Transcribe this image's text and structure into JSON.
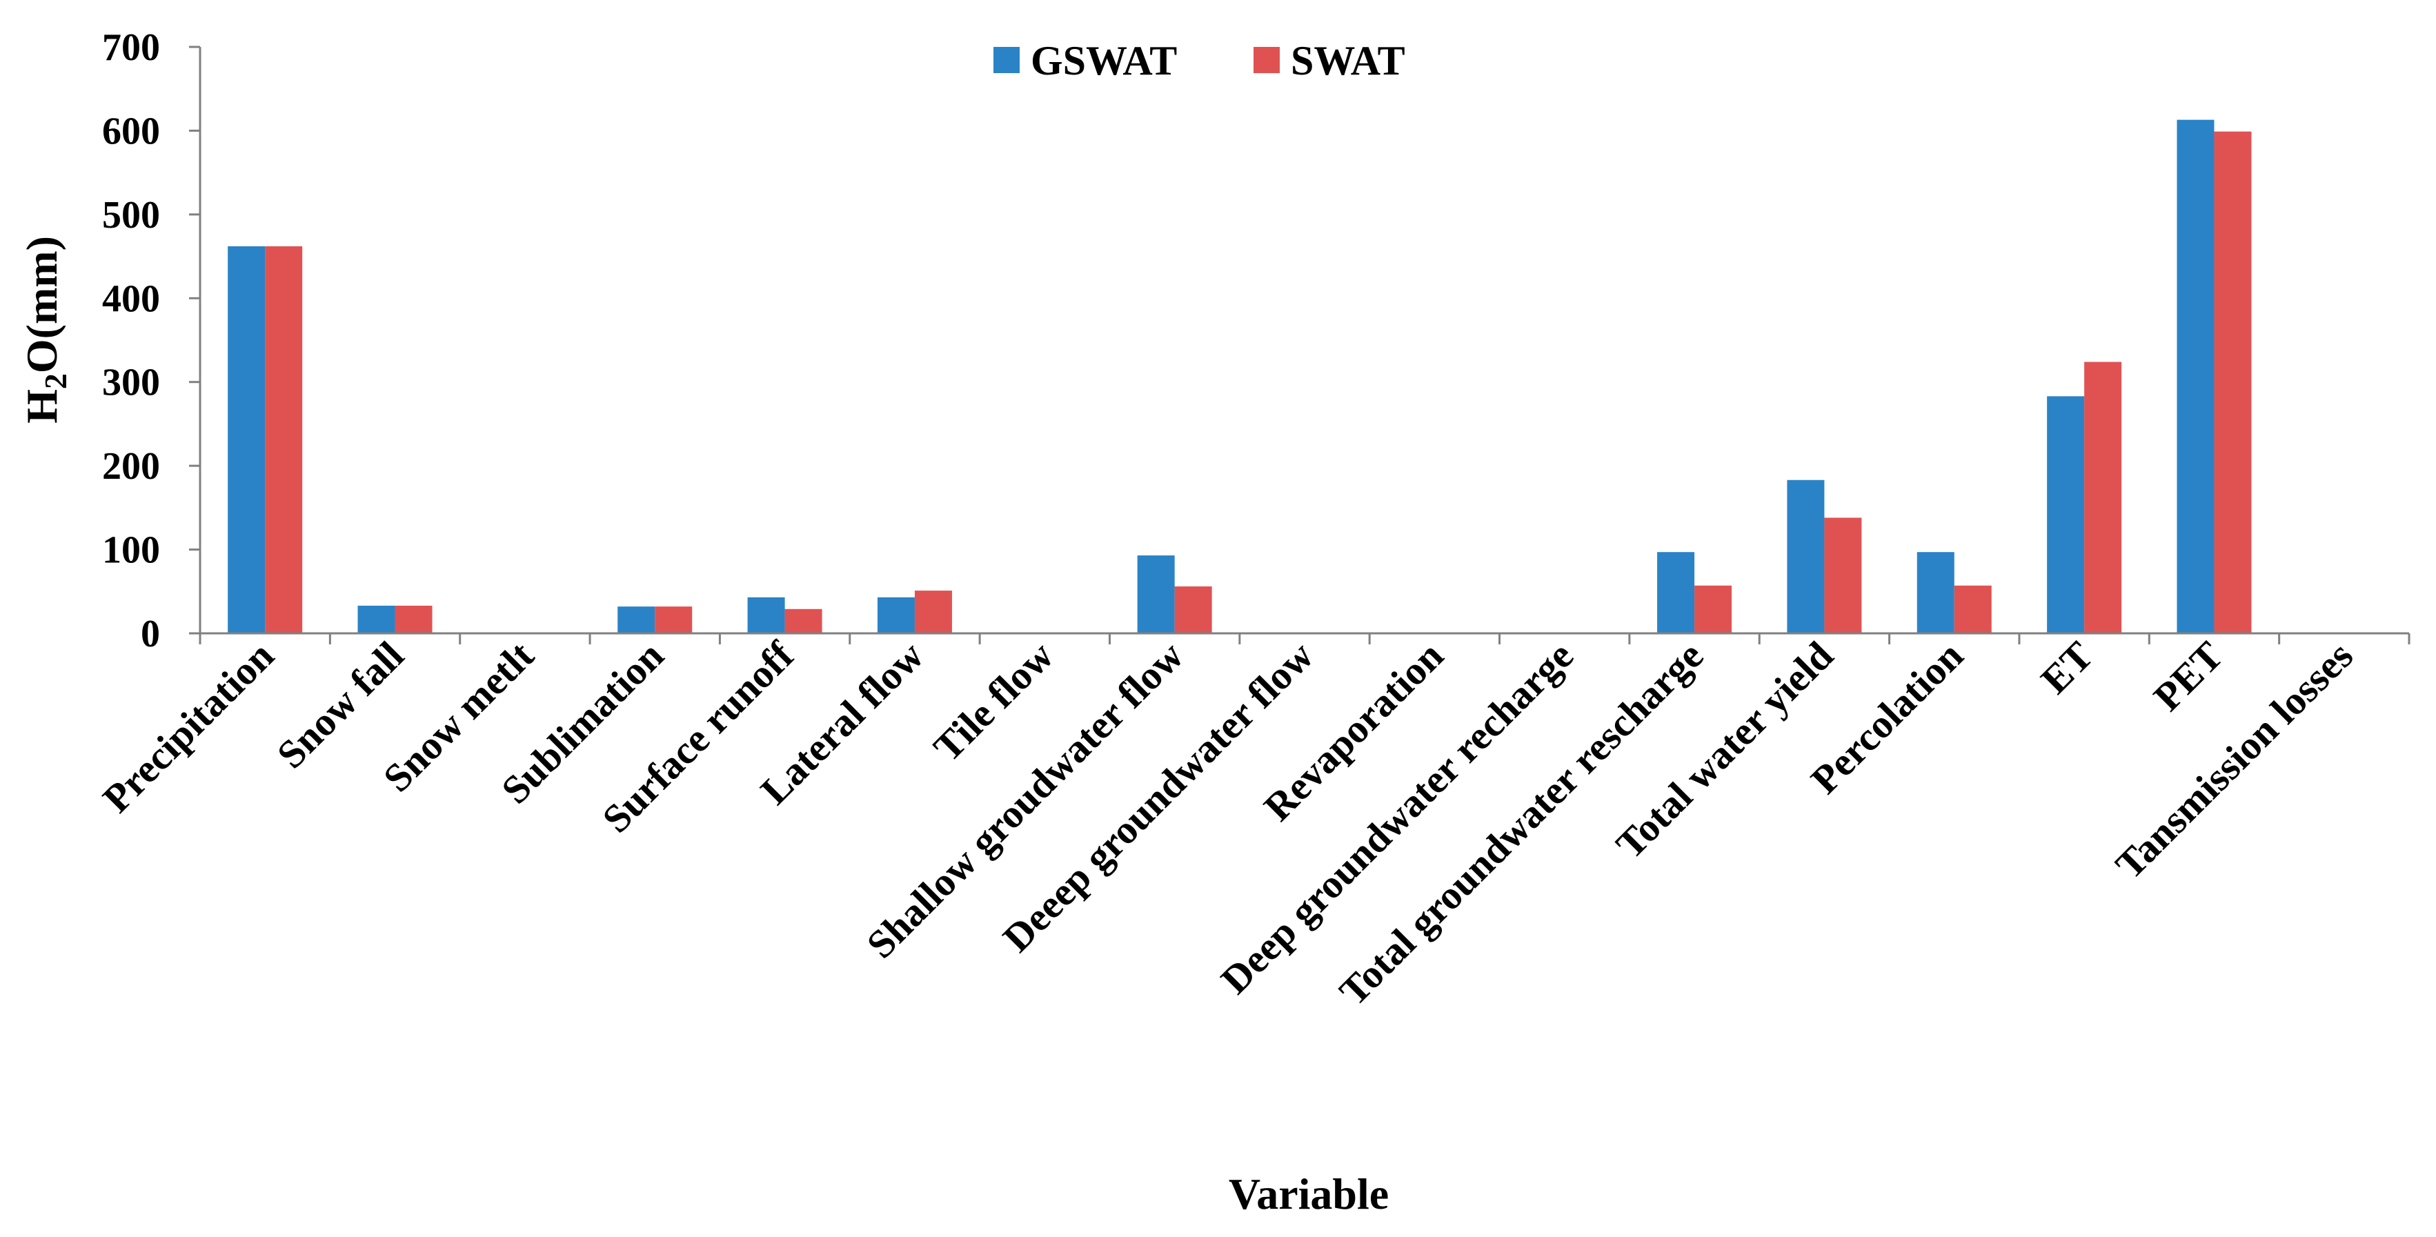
{
  "chart_data": {
    "type": "bar",
    "title": "",
    "xlabel": "Variable",
    "ylabel": "H2O(mm)",
    "ylabel_parts": {
      "pre": "H",
      "sub": "2",
      "post": "O(mm)"
    },
    "ylim": [
      0,
      700
    ],
    "yticks": [
      0,
      100,
      200,
      300,
      400,
      500,
      600,
      700
    ],
    "grid": false,
    "legend_position": "top-center",
    "categories": [
      "Precipitation",
      "Snow fall",
      "Snow metlt",
      "Sublimation",
      "Surface runoff",
      "Lateral flow",
      "Tile flow",
      "Shallow groudwater flow",
      "Deeep groundwater flow",
      "Revaporation",
      "Deep groundwater recharge",
      "Total groundwater rescharge",
      "Total water yield",
      "Percolation",
      "ET",
      "PET",
      "Tansmission losses"
    ],
    "series": [
      {
        "name": "GSWAT",
        "color": "#2a83c6",
        "values": [
          462,
          33,
          0,
          32,
          43,
          43,
          0,
          93,
          0,
          0,
          0,
          97,
          183,
          97,
          283,
          613,
          0
        ]
      },
      {
        "name": "SWAT",
        "color": "#e05252",
        "values": [
          462,
          33,
          0,
          32,
          29,
          51,
          0,
          56,
          0,
          0,
          0,
          57,
          138,
          57,
          324,
          599,
          0
        ]
      }
    ]
  }
}
